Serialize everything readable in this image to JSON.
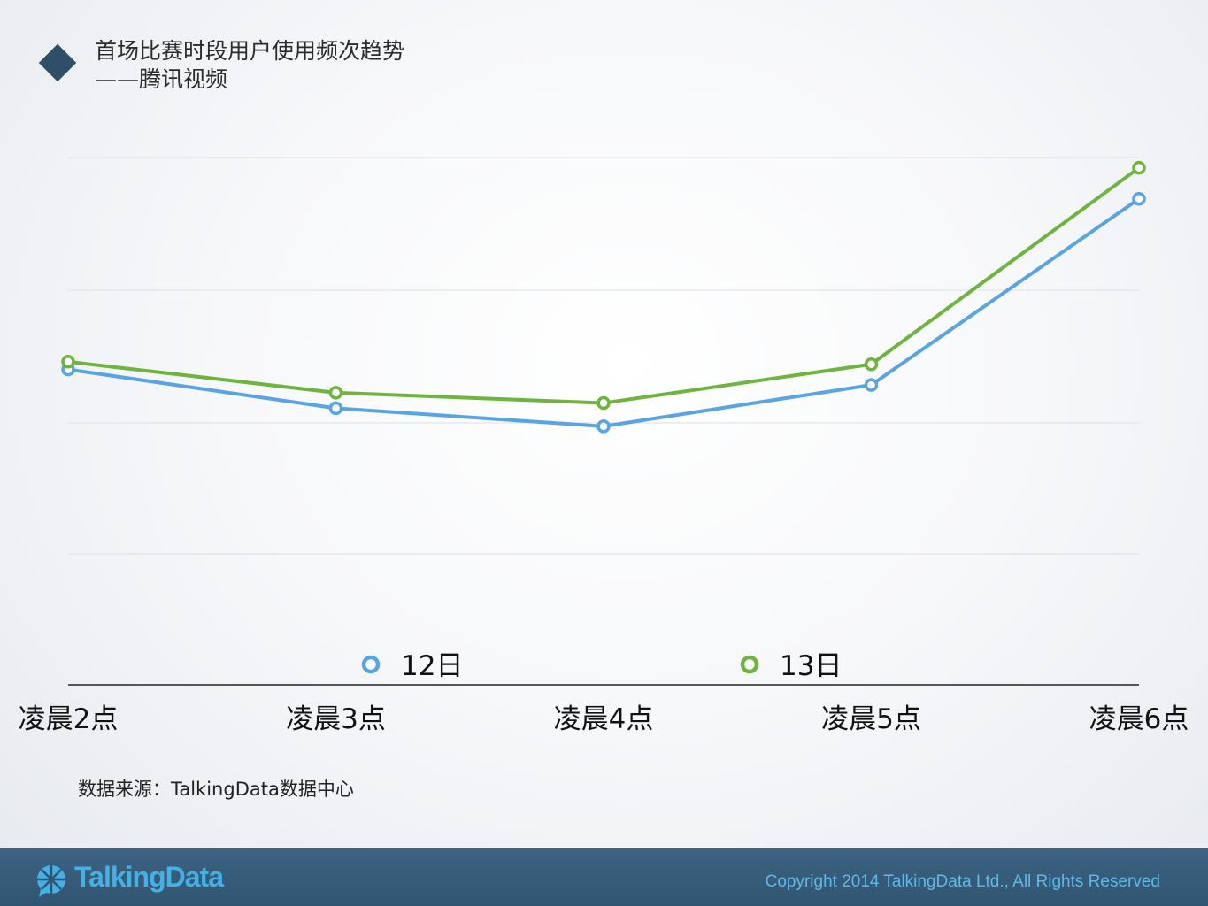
{
  "header": {
    "title": "首场比赛时段用户使用频次趋势",
    "subtitle": "——腾讯视频"
  },
  "chart_data": {
    "type": "line",
    "categories": [
      "凌晨2点",
      "凌晨3点",
      "凌晨4点",
      "凌晨5点",
      "凌晨6点"
    ],
    "series": [
      {
        "name": "12日",
        "values": [
          0.61,
          0.535,
          0.5,
          0.58,
          0.94
        ],
        "color": "#5aa4e2"
      },
      {
        "name": "13日",
        "values": [
          0.625,
          0.565,
          0.545,
          0.62,
          1.0
        ],
        "color": "#6eb43f"
      }
    ],
    "ylim": [
      0,
      1.02
    ],
    "grid": true,
    "legend_position": "bottom"
  },
  "source": "数据来源：TalkingData数据中心",
  "footer": {
    "brand": "TalkingData",
    "copyright": "Copyright 2014 TalkingData Ltd., All Rights Reserved",
    "brand_color": "#44b0e6"
  }
}
